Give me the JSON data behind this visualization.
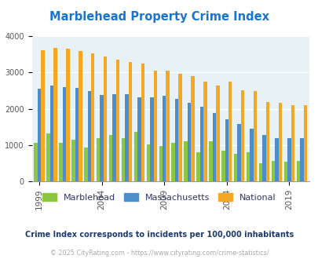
{
  "title": "Marblehead Property Crime Index",
  "title_color": "#1874CD",
  "years": [
    1999,
    2000,
    2001,
    2002,
    2003,
    2004,
    2005,
    2006,
    2007,
    2008,
    2009,
    2010,
    2011,
    2012,
    2013,
    2014,
    2015,
    2016,
    2017,
    2018,
    2019,
    2020
  ],
  "marblehead": [
    1050,
    1320,
    1050,
    1150,
    920,
    1180,
    1280,
    1200,
    1360,
    1020,
    975,
    1050,
    1100,
    800,
    1100,
    850,
    750,
    800,
    500,
    560,
    550,
    560
  ],
  "massachusetts": [
    2560,
    2630,
    2600,
    2570,
    2480,
    2380,
    2400,
    2410,
    2310,
    2320,
    2360,
    2280,
    2160,
    2060,
    1880,
    1700,
    1570,
    1450,
    1270,
    1190,
    1200,
    1180
  ],
  "national": [
    3620,
    3680,
    3650,
    3600,
    3520,
    3450,
    3360,
    3300,
    3250,
    3060,
    3050,
    2970,
    2910,
    2750,
    2650,
    2740,
    2510,
    2490,
    2180,
    2160,
    2100,
    2100
  ],
  "marblehead_color": "#8DC63F",
  "massachusetts_color": "#4C8ECC",
  "national_color": "#F5A623",
  "bg_color": "#E6F2F5",
  "ylim": [
    0,
    4000
  ],
  "yticks": [
    0,
    1000,
    2000,
    3000,
    4000
  ],
  "tick_years": [
    1999,
    2004,
    2009,
    2014,
    2019
  ],
  "subtitle": "Crime Index corresponds to incidents per 100,000 inhabitants",
  "subtitle_color": "#1C3A6E",
  "footer": "© 2025 CityRating.com - https://www.cityrating.com/crime-statistics/",
  "footer_color": "#aaaaaa",
  "legend_labels": [
    "Marblehead",
    "Massachusetts",
    "National"
  ],
  "bar_width": 0.28
}
